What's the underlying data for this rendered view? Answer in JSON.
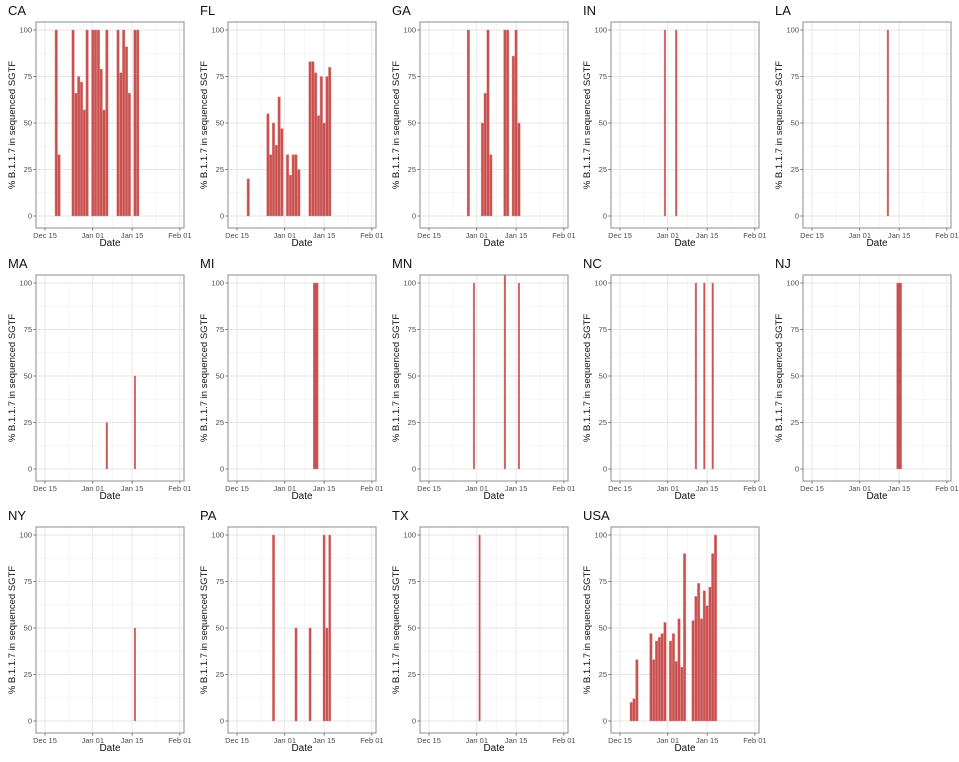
{
  "chart_data": {
    "type": "bar",
    "layout": "facet-grid 3x5",
    "xlabel": "Date",
    "ylabel": "% B.1.1.7 in sequenced SGTF",
    "x_ticks": [
      "Dec 15",
      "Jan 01",
      "Jan 15",
      "Feb 01"
    ],
    "y_ticks": [
      0,
      25,
      50,
      75,
      100
    ],
    "ylim": [
      0,
      100
    ],
    "grid": true,
    "bar_color": "#c8504f",
    "panels": [
      {
        "title": "CA",
        "bar_width": 0.9,
        "bars": [
          [
            "Dec 19",
            100
          ],
          [
            "Dec 20",
            33
          ],
          [
            "Dec 25",
            100
          ],
          [
            "Dec 26",
            66
          ],
          [
            "Dec 27",
            75
          ],
          [
            "Dec 28",
            72
          ],
          [
            "Dec 29",
            57
          ],
          [
            "Dec 30",
            100
          ],
          [
            "Jan 01",
            100
          ],
          [
            "Jan 02",
            100
          ],
          [
            "Jan 03",
            100
          ],
          [
            "Jan 04",
            79
          ],
          [
            "Jan 05",
            57
          ],
          [
            "Jan 06",
            100
          ],
          [
            "Jan 10",
            100
          ],
          [
            "Jan 11",
            77
          ],
          [
            "Jan 12",
            100
          ],
          [
            "Jan 13",
            91
          ],
          [
            "Jan 14",
            66
          ],
          [
            "Jan 16",
            100
          ],
          [
            "Jan 17",
            100
          ]
        ]
      },
      {
        "title": "FL",
        "bar_width": 0.9,
        "bars": [
          [
            "Dec 19",
            20
          ],
          [
            "Dec 26",
            55
          ],
          [
            "Dec 27",
            33
          ],
          [
            "Dec 28",
            50
          ],
          [
            "Dec 29",
            38
          ],
          [
            "Dec 30",
            64
          ],
          [
            "Dec 31",
            47
          ],
          [
            "Jan 02",
            33
          ],
          [
            "Jan 03",
            22
          ],
          [
            "Jan 04",
            33
          ],
          [
            "Jan 05",
            33
          ],
          [
            "Jan 06",
            25
          ],
          [
            "Jan 10",
            83
          ],
          [
            "Jan 11",
            83
          ],
          [
            "Jan 12",
            77
          ],
          [
            "Jan 13",
            54
          ],
          [
            "Jan 14",
            75
          ],
          [
            "Jan 15",
            50
          ],
          [
            "Jan 16",
            75
          ],
          [
            "Jan 17",
            80
          ]
        ]
      },
      {
        "title": "GA",
        "bar_width": 0.9,
        "bars": [
          [
            "Dec 29",
            100
          ],
          [
            "Jan 03",
            50
          ],
          [
            "Jan 04",
            66
          ],
          [
            "Jan 05",
            100
          ],
          [
            "Jan 06",
            33
          ],
          [
            "Jan 11",
            100
          ],
          [
            "Jan 12",
            100
          ],
          [
            "Jan 14",
            86
          ],
          [
            "Jan 15",
            100
          ],
          [
            "Jan 16",
            50
          ]
        ]
      },
      {
        "title": "IN",
        "bar_width": 0.6,
        "bars": [
          [
            "Dec 31",
            100
          ],
          [
            "Jan 04",
            100
          ]
        ]
      },
      {
        "title": "LA",
        "bar_width": 0.6,
        "bars": [
          [
            "Jan 11",
            100
          ]
        ]
      },
      {
        "title": "MA",
        "bar_width": 0.6,
        "bars": [
          [
            "Jan 06",
            25
          ],
          [
            "Jan 16",
            50
          ]
        ]
      },
      {
        "title": "MI",
        "bar_width": 1.8,
        "bars": [
          [
            "Jan 12",
            100
          ]
        ]
      },
      {
        "title": "MN",
        "bar_width": 0.6,
        "bars": [
          [
            "Dec 31",
            100
          ],
          [
            "Jan 11",
            105
          ],
          [
            "Jan 16",
            100
          ]
        ]
      },
      {
        "title": "NC",
        "bar_width": 0.6,
        "bars": [
          [
            "Jan 11",
            100
          ],
          [
            "Jan 14",
            100
          ],
          [
            "Jan 17",
            100
          ]
        ]
      },
      {
        "title": "NJ",
        "bar_width": 1.8,
        "bars": [
          [
            "Jan 15",
            100
          ]
        ]
      },
      {
        "title": "NY",
        "bar_width": 0.6,
        "bars": [
          [
            "Jan 16",
            50
          ]
        ]
      },
      {
        "title": "PA",
        "bar_width": 0.8,
        "bars": [
          [
            "Dec 28",
            100
          ],
          [
            "Jan 05",
            50
          ],
          [
            "Jan 10",
            50
          ],
          [
            "Jan 15",
            100
          ],
          [
            "Jan 16",
            50
          ],
          [
            "Jan 17",
            100
          ]
        ]
      },
      {
        "title": "TX",
        "bar_width": 0.6,
        "bars": [
          [
            "Jan 02",
            100
          ]
        ]
      },
      {
        "title": "USA",
        "bar_width": 0.9,
        "bars": [
          [
            "Dec 19",
            10
          ],
          [
            "Dec 20",
            12
          ],
          [
            "Dec 21",
            33
          ],
          [
            "Dec 26",
            47
          ],
          [
            "Dec 27",
            33
          ],
          [
            "Dec 28",
            43
          ],
          [
            "Dec 29",
            45
          ],
          [
            "Dec 30",
            47
          ],
          [
            "Dec 31",
            53
          ],
          [
            "Jan 02",
            43
          ],
          [
            "Jan 03",
            47
          ],
          [
            "Jan 04",
            32
          ],
          [
            "Jan 05",
            55
          ],
          [
            "Jan 06",
            29
          ],
          [
            "Jan 07",
            90
          ],
          [
            "Jan 10",
            54
          ],
          [
            "Jan 11",
            67
          ],
          [
            "Jan 12",
            74
          ],
          [
            "Jan 13",
            55
          ],
          [
            "Jan 14",
            70
          ],
          [
            "Jan 15",
            62
          ],
          [
            "Jan 16",
            72
          ],
          [
            "Jan 17",
            90
          ],
          [
            "Jan 18",
            100
          ]
        ]
      }
    ]
  }
}
